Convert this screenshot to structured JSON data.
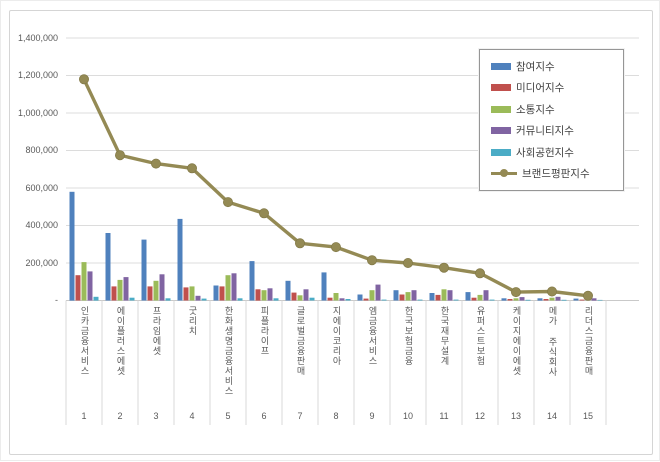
{
  "legend": {
    "items": [
      {
        "label": "참여지수",
        "type": "bar",
        "color": "#4F81BD"
      },
      {
        "label": "미디어지수",
        "type": "bar",
        "color": "#C0504D"
      },
      {
        "label": "소통지수",
        "type": "bar",
        "color": "#9BBB59"
      },
      {
        "label": "커뮤니티지수",
        "type": "bar",
        "color": "#8064A2"
      },
      {
        "label": "사회공헌지수",
        "type": "bar",
        "color": "#4BACC6"
      },
      {
        "label": "브랜드평판지수",
        "type": "line",
        "color": "#948A54"
      }
    ]
  },
  "chart_data": {
    "type": "bar+line",
    "title": "",
    "xlabel": "",
    "ylabel": "",
    "grid": true,
    "legend_position": "top-right-overlay",
    "ylim": [
      0,
      1400000
    ],
    "y_ticks": [
      {
        "label": "1,400,000",
        "value": 1400000
      },
      {
        "label": "1,200,000",
        "value": 1200000
      },
      {
        "label": "1,000,000",
        "value": 1000000
      },
      {
        "label": "800,000",
        "value": 800000
      },
      {
        "label": "600,000",
        "value": 600000
      },
      {
        "label": "400,000",
        "value": 400000
      },
      {
        "label": "200,000",
        "value": 200000
      },
      {
        "label": "-",
        "value": 0
      }
    ],
    "categories": [
      "인카금융서비스",
      "에이플러스에셋",
      "프라임에셋",
      "굿리치",
      "한화생명금융서비스",
      "피플라이프",
      "글로벌금융판매",
      "지에이코리아",
      "엠금융서비스",
      "한국보험금융",
      "한국재무설계",
      "유퍼스트보험",
      "케이지에이에셋",
      "메가 주식회사",
      "리더스금융판매"
    ],
    "category_numbers": [
      "1",
      "2",
      "3",
      "4",
      "5",
      "6",
      "7",
      "8",
      "9",
      "10",
      "11",
      "12",
      "13",
      "14",
      "15"
    ],
    "series": [
      {
        "name": "참여지수",
        "type": "bar",
        "color": "#4F81BD",
        "values": [
          580000,
          360000,
          325000,
          435000,
          80000,
          210000,
          105000,
          150000,
          32000,
          55000,
          40000,
          45000,
          12000,
          12000,
          10000
        ]
      },
      {
        "name": "미디어지수",
        "type": "bar",
        "color": "#C0504D",
        "values": [
          135000,
          75000,
          75000,
          70000,
          75000,
          60000,
          42000,
          15000,
          10000,
          32000,
          30000,
          15000,
          8000,
          8000,
          5000
        ]
      },
      {
        "name": "소통지수",
        "type": "bar",
        "color": "#9BBB59",
        "values": [
          205000,
          110000,
          105000,
          75000,
          135000,
          55000,
          28000,
          40000,
          55000,
          45000,
          60000,
          30000,
          12000,
          15000,
          8000
        ]
      },
      {
        "name": "커뮤니티지수",
        "type": "bar",
        "color": "#8064A2",
        "values": [
          155000,
          125000,
          140000,
          25000,
          145000,
          65000,
          60000,
          12000,
          85000,
          55000,
          55000,
          55000,
          18000,
          20000,
          12000
        ]
      },
      {
        "name": "사회공헌지수",
        "type": "bar",
        "color": "#4BACC6",
        "values": [
          20000,
          15000,
          12000,
          10000,
          12000,
          12000,
          15000,
          8000,
          5000,
          5000,
          5000,
          5000,
          4000,
          4000,
          3000
        ]
      },
      {
        "name": "브랜드평판지수",
        "type": "line",
        "color": "#948A54",
        "values": [
          1180000,
          775000,
          730000,
          705000,
          525000,
          465000,
          305000,
          285000,
          215000,
          200000,
          175000,
          145000,
          45000,
          48000,
          25000
        ]
      }
    ]
  }
}
